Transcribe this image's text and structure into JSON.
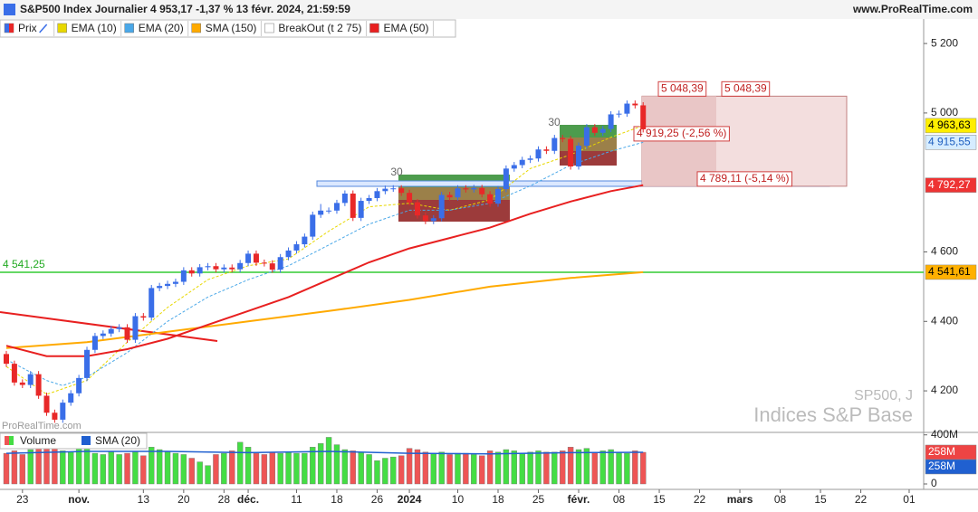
{
  "header": {
    "title": "S&P500 Index Journalier 4 953,17 -1,37 % 13 févr. 2024, 21:59:59",
    "site": "www.ProRealTime.com"
  },
  "watermarks": {
    "brand": "ProRealTime.com",
    "symbol": "SP500, J",
    "market": "Indices S&P Base"
  },
  "chart_data": [
    {
      "type": "candlestick",
      "name": "Prix",
      "up_color": "#3a6ee8",
      "down_color": "#e82828",
      "xlim": [
        -0.787,
        113.8
      ],
      "ylim": [
        4083,
        5268
      ],
      "yticks": [
        {
          "value": 4200,
          "label": "4 200"
        },
        {
          "value": 4400,
          "label": "4 400"
        },
        {
          "value": 4600,
          "label": "4 600"
        },
        {
          "value": 5000,
          "label": "5 000"
        },
        {
          "value": 5200,
          "label": "5 200"
        }
      ],
      "open": [
        4306,
        4278,
        4224,
        4217,
        4248,
        4186,
        4137,
        4117,
        4166,
        4193,
        4237,
        4318,
        4358,
        4365,
        4378,
        4383,
        4347,
        4415,
        4411,
        4496,
        4502,
        4508,
        4514,
        4547,
        4538,
        4556,
        4559,
        4550,
        4555,
        4550,
        4568,
        4595,
        4569,
        4567,
        4549,
        4585,
        4604,
        4622,
        4644,
        4707,
        4719,
        4719,
        4741,
        4768,
        4698,
        4747,
        4755,
        4775,
        4782,
        4783,
        4770,
        4743,
        4705,
        4689,
        4697,
        4764,
        4757,
        4783,
        4780,
        4784,
        4766,
        4739,
        4781,
        4840,
        4850,
        4865,
        4869,
        4895,
        4891,
        4928,
        4925,
        4846,
        4906,
        4959,
        4943,
        4954,
        4996,
        4998,
        5027,
        5022
      ],
      "high": [
        4315,
        4287,
        4233,
        4257,
        4257,
        4195,
        4146,
        4175,
        4202,
        4246,
        4327,
        4367,
        4374,
        4387,
        4392,
        4392,
        4424,
        4424,
        4505,
        4511,
        4517,
        4523,
        4556,
        4556,
        4565,
        4568,
        4568,
        4564,
        4564,
        4577,
        4604,
        4604,
        4578,
        4576,
        4594,
        4613,
        4631,
        4653,
        4716,
        4738,
        4728,
        4750,
        4777,
        4777,
        4756,
        4764,
        4784,
        4791,
        4792,
        4792,
        4779,
        4752,
        4714,
        4706,
        4773,
        4773,
        4792,
        4792,
        4793,
        4793,
        4775,
        4790,
        4849,
        4859,
        4874,
        4878,
        4904,
        4904,
        4937,
        4937,
        4934,
        4915,
        4968,
        4968,
        4963,
        5005,
        5007,
        5036,
        5036,
        5031
      ],
      "low": [
        4269,
        4215,
        4208,
        4208,
        4177,
        4128,
        4108,
        4108,
        4157,
        4184,
        4228,
        4309,
        4349,
        4356,
        4369,
        4338,
        4338,
        4402,
        4402,
        4487,
        4493,
        4499,
        4505,
        4529,
        4529,
        4547,
        4541,
        4541,
        4541,
        4541,
        4559,
        4560,
        4558,
        4540,
        4540,
        4576,
        4595,
        4613,
        4635,
        4698,
        4710,
        4710,
        4732,
        4689,
        4689,
        4738,
        4746,
        4766,
        4773,
        4761,
        4734,
        4696,
        4680,
        4680,
        4688,
        4748,
        4748,
        4771,
        4771,
        4757,
        4730,
        4730,
        4772,
        4831,
        4841,
        4856,
        4860,
        4882,
        4882,
        4916,
        4837,
        4837,
        4897,
        4934,
        4934,
        4945,
        4987,
        4989,
        5013,
        4944
      ],
      "close": [
        4278,
        4224,
        4217,
        4248,
        4186,
        4137,
        4117,
        4166,
        4193,
        4237,
        4318,
        4358,
        4365,
        4378,
        4383,
        4347,
        4415,
        4411,
        4496,
        4502,
        4508,
        4514,
        4547,
        4538,
        4556,
        4559,
        4550,
        4555,
        4550,
        4568,
        4595,
        4569,
        4567,
        4549,
        4585,
        4604,
        4622,
        4644,
        4707,
        4719,
        4719,
        4741,
        4768,
        4698,
        4747,
        4755,
        4775,
        4782,
        4783,
        4770,
        4743,
        4705,
        4689,
        4697,
        4764,
        4757,
        4783,
        4780,
        4784,
        4766,
        4739,
        4781,
        4840,
        4850,
        4865,
        4869,
        4895,
        4891,
        4928,
        4925,
        4846,
        4906,
        4959,
        4943,
        4954,
        4996,
        4998,
        5027,
        5022,
        4953
      ],
      "series": [
        {
          "name": "EMA (10)",
          "color": "#e8d800",
          "dash": true,
          "x": [
            0,
            5,
            10,
            15,
            20,
            25,
            30,
            35,
            40,
            45,
            50,
            55,
            60,
            65,
            70,
            75,
            79
          ],
          "values": [
            4270,
            4190,
            4230,
            4340,
            4440,
            4520,
            4560,
            4580,
            4660,
            4730,
            4740,
            4720,
            4750,
            4840,
            4880,
            4930,
            4963.63
          ]
        },
        {
          "name": "EMA (20)",
          "color": "#4aa8e8",
          "dash": true,
          "x": [
            0,
            5,
            7,
            10,
            15,
            20,
            25,
            30,
            35,
            40,
            45,
            50,
            55,
            60,
            65,
            70,
            75,
            79
          ],
          "values": [
            4290,
            4230,
            4215,
            4240,
            4310,
            4400,
            4470,
            4520,
            4560,
            4620,
            4680,
            4720,
            4720,
            4740,
            4790,
            4850,
            4890,
            4915.55
          ]
        },
        {
          "name": "SMA (150)",
          "color": "#ffaa00",
          "dash": false,
          "x": [
            0,
            10,
            20,
            30,
            40,
            50,
            60,
            70,
            79
          ],
          "values": [
            4323,
            4340,
            4370,
            4400,
            4430,
            4462,
            4500,
            4525,
            4541.61
          ]
        },
        {
          "name": "EMA (50)",
          "color": "#e82020",
          "dash": false,
          "x": [
            0,
            5,
            10,
            15,
            20,
            25,
            30,
            35,
            40,
            45,
            50,
            55,
            60,
            65,
            70,
            75,
            79
          ],
          "values": [
            4330,
            4300,
            4300,
            4320,
            4350,
            4390,
            4430,
            4470,
            4520,
            4570,
            4610,
            4640,
            4670,
            4710,
            4745,
            4775,
            4792.27
          ]
        }
      ],
      "breakout": {
        "name": "BreakOut (t 2 75)",
        "counts": [
          30,
          30
        ]
      },
      "levels": [
        {
          "value": 5048.39,
          "label": "5 048,39"
        },
        {
          "value": 5048.39,
          "label": "5 048,39"
        },
        {
          "value": 4919.25,
          "label": "4 919,25 (-2,56 %)"
        },
        {
          "value": 4789.11,
          "label": "4 789,11 (-5,14 %)"
        }
      ],
      "hline": {
        "value": 4541.25,
        "label": "4 541,25",
        "color": "#33cc33"
      },
      "axis_labels": [
        {
          "value": 4963.63,
          "label": "4 963,63",
          "color": "#ffee00",
          "text_color": "#000000"
        },
        {
          "value": 4915.55,
          "label": "4 915,55",
          "color": "#d6ecff",
          "text_color": "#2060c0"
        },
        {
          "value": 4792.27,
          "label": "4 792,27",
          "color": "#ee3333",
          "text_color": "#ffffff"
        },
        {
          "value": 4541.61,
          "label": "4 541,61",
          "color": "#ffb000",
          "text_color": "#000000"
        }
      ]
    },
    {
      "type": "volume",
      "name": "Volume",
      "xlim": [
        -0.787,
        113.8
      ],
      "ylim": [
        0,
        420
      ],
      "yticks": [
        0,
        {
          "value": 400,
          "label": "400M"
        }
      ],
      "up_color": "#44dd44",
      "down_color": "#ee5555",
      "values": [
        250,
        270,
        240,
        280,
        300,
        290,
        320,
        270,
        260,
        290,
        300,
        250,
        240,
        260,
        240,
        250,
        260,
        230,
        300,
        280,
        260,
        250,
        240,
        210,
        180,
        150,
        240,
        250,
        270,
        340,
        300,
        250,
        240,
        260,
        250,
        260,
        250,
        250,
        300,
        330,
        380,
        320,
        280,
        270,
        260,
        240,
        190,
        210,
        220,
        230,
        290,
        280,
        260,
        250,
        260,
        240,
        250,
        250,
        240,
        230,
        270,
        260,
        280,
        270,
        250,
        260,
        270,
        260,
        260,
        270,
        300,
        280,
        290,
        260,
        270,
        280,
        260,
        250,
        270,
        258
      ],
      "sma": {
        "name": "SMA (20)",
        "color": "#2060d0",
        "x": [
          0,
          10,
          20,
          30,
          40,
          50,
          60,
          70,
          79
        ],
        "values": [
          250,
          265,
          265,
          255,
          265,
          250,
          245,
          255,
          258
        ]
      },
      "axis_labels": [
        {
          "value": 258,
          "label": "258M",
          "color": "#ee4444",
          "text_color": "#ffffff"
        },
        {
          "value": 258,
          "label": "258M",
          "color": "#2060d0",
          "text_color": "#ffffff"
        }
      ],
      "xticks": [
        {
          "value": 2,
          "label": "23"
        },
        {
          "value": 9,
          "label": "nov."
        },
        {
          "value": 17,
          "label": "13"
        },
        {
          "value": 22,
          "label": "20"
        },
        {
          "value": 27,
          "label": "28"
        },
        {
          "value": 30,
          "label": "déc."
        },
        {
          "value": 36,
          "label": "11"
        },
        {
          "value": 41,
          "label": "18"
        },
        {
          "value": 46,
          "label": "26"
        },
        {
          "value": 50,
          "label": "2024"
        },
        {
          "value": 56,
          "label": "10"
        },
        {
          "value": 61,
          "label": "18"
        },
        {
          "value": 66,
          "label": "25"
        },
        {
          "value": 71,
          "label": "févr."
        },
        {
          "value": 76,
          "label": "08"
        },
        {
          "value": 81,
          "label": "15"
        },
        {
          "value": 86,
          "label": "22"
        },
        {
          "value": 91,
          "label": "mars"
        },
        {
          "value": 96,
          "label": "08"
        },
        {
          "value": 101,
          "label": "15"
        },
        {
          "value": 106,
          "label": "22"
        },
        {
          "value": 112,
          "label": "01"
        }
      ]
    }
  ]
}
